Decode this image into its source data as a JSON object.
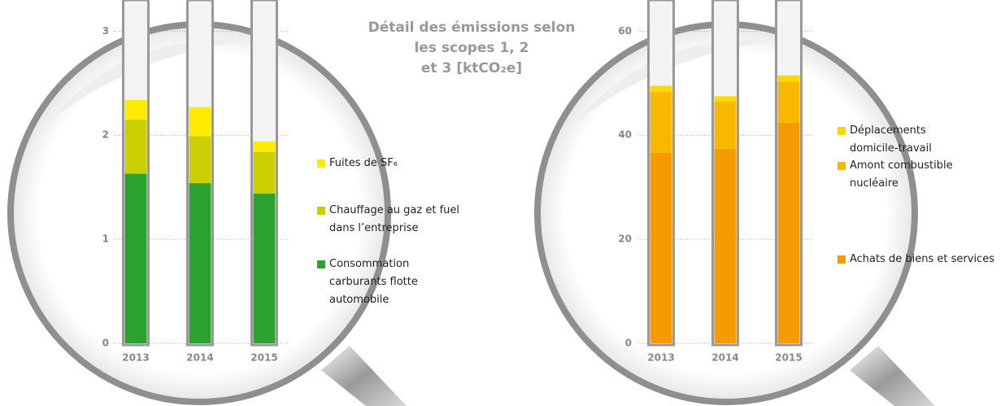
{
  "title": [
    "Détail des émissions selon",
    "les scopes 1, 2",
    "et 3 [ktCO₂e]"
  ],
  "chart_data": [
    {
      "type": "stacked-bar",
      "categories": [
        "2013",
        "2014",
        "2015"
      ],
      "ylim": [
        0,
        3.3
      ],
      "yticks": [
        0,
        1,
        2,
        3
      ],
      "grid": true,
      "series": [
        {
          "name": "Consommation carburants flotte automobile",
          "color": "#2ba12f",
          "values": [
            1.63,
            1.54,
            1.44
          ]
        },
        {
          "name": "Chauffage au gaz et fuel dans l’entreprise",
          "color": "#c9cf00",
          "values": [
            0.52,
            0.45,
            0.4
          ]
        },
        {
          "name": "Fuites de SF₆",
          "color": "#ffeb00",
          "values": [
            0.19,
            0.28,
            0.1
          ]
        }
      ]
    },
    {
      "type": "stacked-bar",
      "categories": [
        "2013",
        "2014",
        "2015"
      ],
      "ylim": [
        0,
        66
      ],
      "yticks": [
        0,
        20,
        40,
        60
      ],
      "grid": true,
      "series": [
        {
          "name": "Achats de biens et services",
          "color": "#f39b00",
          "values": [
            36.6,
            37.4,
            42.4
          ]
        },
        {
          "name": "Amont combustible nucléaire",
          "color": "#f9b800",
          "values": [
            11.7,
            9.1,
            7.9
          ]
        },
        {
          "name": "Déplacements domicile-travail",
          "color": "#ffd700",
          "values": [
            1.2,
            1.0,
            1.2
          ]
        }
      ]
    }
  ]
}
